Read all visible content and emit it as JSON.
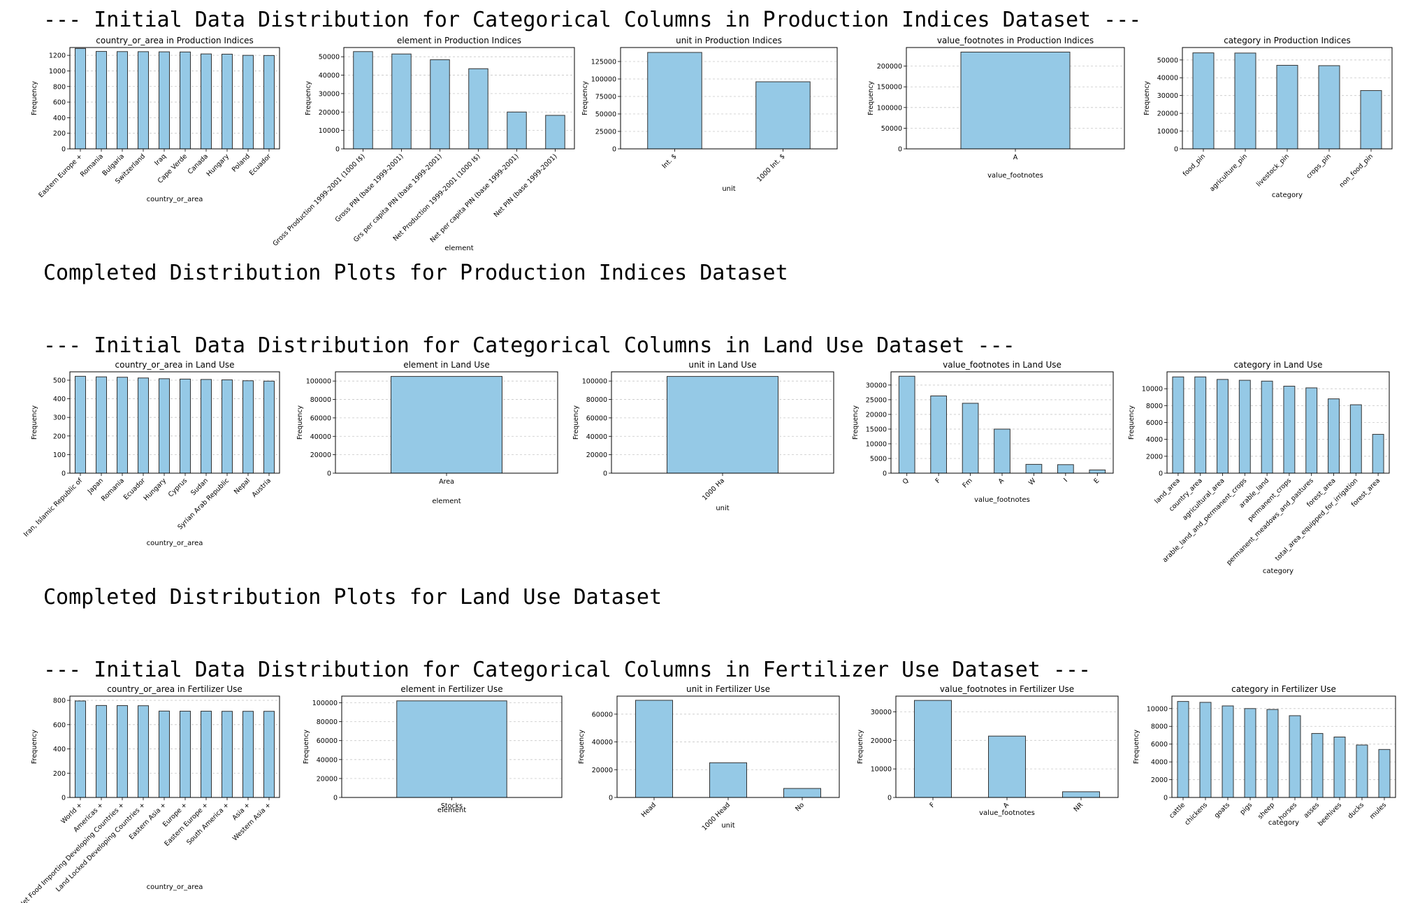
{
  "sections": [
    {
      "heading": "--- Initial Data Distribution for Categorical Columns in Production Indices Dataset ---",
      "completed": "Completed Distribution Plots for Production Indices Dataset",
      "charts": [
        {
          "title": "country_or_area in Production Indices",
          "xlabel": "country_or_area",
          "ylabel": "Frequency",
          "ylim": [
            0,
            1300
          ],
          "yticks": [
            0,
            200,
            400,
            600,
            800,
            1000,
            1200
          ],
          "categories": [
            "Eastern Europe +",
            "Romania",
            "Bulgaria",
            "Switzerland",
            "Iraq",
            "Cape Verde",
            "Canada",
            "Hungary",
            "Poland",
            "Ecuador"
          ],
          "values": [
            1288,
            1250,
            1248,
            1247,
            1245,
            1243,
            1218,
            1215,
            1200,
            1198
          ]
        },
        {
          "title": "element in Production Indices",
          "xlabel": "element",
          "ylabel": "Frequency",
          "ylim": [
            0,
            55000
          ],
          "yticks": [
            0,
            10000,
            20000,
            30000,
            40000,
            50000
          ],
          "categories": [
            "Gross Production 1999-2001 (1000 I$)",
            "Gross PIN (base 1999-2001)",
            "Grs per capita PIN (base 1999-2001)",
            "Net Production 1999-2001 (1000 I$)",
            "Net per capita PIN (base 1999-2001)",
            "Net PIN (base 1999-2001)"
          ],
          "values": [
            52800,
            51500,
            48400,
            43500,
            20000,
            18200
          ]
        },
        {
          "title": "unit in Production Indices",
          "xlabel": "unit",
          "ylabel": "Frequency",
          "ylim": [
            0,
            145000
          ],
          "yticks": [
            0,
            25000,
            50000,
            75000,
            100000,
            125000
          ],
          "categories": [
            "Int. $",
            "1000 Int. $"
          ],
          "values": [
            138000,
            96000
          ]
        },
        {
          "title": "value_footnotes in Production Indices",
          "xlabel": "value_footnotes",
          "ylabel": "Frequency",
          "ylim": [
            0,
            245000
          ],
          "yticks": [
            0,
            50000,
            100000,
            150000,
            200000
          ],
          "categories": [
            "A"
          ],
          "values": [
            234000
          ]
        },
        {
          "title": "category in Production Indices",
          "xlabel": "category",
          "ylabel": "Frequency",
          "ylim": [
            0,
            57000
          ],
          "yticks": [
            0,
            10000,
            20000,
            30000,
            40000,
            50000
          ],
          "categories": [
            "food_pin",
            "agriculture_pin",
            "livestock_pin",
            "crops_pin",
            "non_food_pin"
          ],
          "values": [
            54000,
            53900,
            47000,
            46800,
            32800
          ]
        }
      ]
    },
    {
      "heading": "--- Initial Data Distribution for Categorical Columns in Land Use Dataset ---",
      "completed": "Completed Distribution Plots for Land Use Dataset",
      "charts": [
        {
          "title": "country_or_area in Land Use",
          "xlabel": "country_or_area",
          "ylabel": "Frequency",
          "ylim": [
            0,
            545
          ],
          "yticks": [
            0,
            100,
            200,
            300,
            400,
            500
          ],
          "categories": [
            "Iran, Islamic Republic of",
            "Japan",
            "Romania",
            "Ecuador",
            "Hungary",
            "Cyprus",
            "Sudan",
            "Syrian Arab Republic",
            "Nepal",
            "Austria"
          ],
          "values": [
            521,
            518,
            516,
            512,
            508,
            506,
            504,
            502,
            497,
            495
          ]
        },
        {
          "title": "element in Land Use",
          "xlabel": "element",
          "ylabel": "Frequency",
          "ylim": [
            0,
            110000
          ],
          "yticks": [
            0,
            20000,
            40000,
            60000,
            80000,
            100000
          ],
          "categories": [
            "Area"
          ],
          "values": [
            105000
          ]
        },
        {
          "title": "unit in Land Use",
          "xlabel": "unit",
          "ylabel": "Frequency",
          "ylim": [
            0,
            110000
          ],
          "yticks": [
            0,
            20000,
            40000,
            60000,
            80000,
            100000
          ],
          "categories": [
            "1000 Ha"
          ],
          "values": [
            105000
          ]
        },
        {
          "title": "value_footnotes in Land Use",
          "xlabel": "value_footnotes",
          "ylabel": "Frequency",
          "ylim": [
            0,
            34500
          ],
          "yticks": [
            0,
            5000,
            10000,
            15000,
            20000,
            25000,
            30000
          ],
          "categories": [
            "Q",
            "F",
            "Fm",
            "A",
            "W",
            "I",
            "E"
          ],
          "values": [
            33000,
            26300,
            23800,
            15000,
            3000,
            2900,
            1100
          ]
        },
        {
          "title": "category in Land Use",
          "xlabel": "category",
          "ylabel": "Frequency",
          "ylim": [
            0,
            12000
          ],
          "yticks": [
            0,
            2000,
            4000,
            6000,
            8000,
            10000
          ],
          "categories": [
            "land_area",
            "country_area",
            "agricultural_area",
            "arable_land_and_permanent_crops",
            "arable_land",
            "permanent_crops",
            "permanent_meadows_and_pastures",
            "forest_area",
            "total_area_equipped_for_irrigation",
            "forest_area"
          ],
          "values": [
            11400,
            11400,
            11100,
            11000,
            10900,
            10300,
            10100,
            8800,
            8100,
            4600
          ]
        }
      ]
    },
    {
      "heading": "--- Initial Data Distribution for Categorical Columns in Fertilizer Use Dataset ---",
      "completed": "",
      "charts": [
        {
          "title": "country_or_area in Fertilizer Use",
          "xlabel": "country_or_area",
          "ylabel": "Frequency",
          "ylim": [
            0,
            835
          ],
          "yticks": [
            0,
            200,
            400,
            600,
            800
          ],
          "categories": [
            "World +",
            "Americas +",
            "Net Food Importing Developing Countries +",
            "Land Locked Developing Countries +",
            "Eastern Asia +",
            "Europe +",
            "Eastern Europe +",
            "South America +",
            "Asia +",
            "Western Asia +"
          ],
          "values": [
            795,
            758,
            757,
            756,
            712,
            711,
            711,
            710,
            710,
            710
          ]
        },
        {
          "title": "element in Fertilizer Use",
          "xlabel": "element",
          "ylabel": "Frequency",
          "ylim": [
            0,
            107000
          ],
          "yticks": [
            0,
            20000,
            40000,
            60000,
            80000,
            100000
          ],
          "categories": [
            "Stocks"
          ],
          "values": [
            102000
          ]
        },
        {
          "title": "unit in Fertilizer Use",
          "xlabel": "unit",
          "ylabel": "Frequency",
          "ylim": [
            0,
            73000
          ],
          "yticks": [
            0,
            20000,
            40000,
            60000
          ],
          "categories": [
            "Head",
            "1000 Head",
            "No"
          ],
          "values": [
            70000,
            25000,
            6500
          ]
        },
        {
          "title": "value_footnotes in Fertilizer Use",
          "xlabel": "value_footnotes",
          "ylabel": "Frequency",
          "ylim": [
            0,
            35500
          ],
          "yticks": [
            0,
            10000,
            20000,
            30000
          ],
          "categories": [
            "F",
            "A",
            "NR"
          ],
          "values": [
            34000,
            21500,
            2000
          ]
        },
        {
          "title": "category in Fertilizer Use",
          "xlabel": "category",
          "ylabel": "Frequency",
          "ylim": [
            0,
            11400
          ],
          "yticks": [
            0,
            2000,
            4000,
            6000,
            8000,
            10000
          ],
          "categories": [
            "cattle",
            "chickens",
            "goats",
            "pigs",
            "sheep",
            "horses",
            "asses",
            "beehives",
            "ducks",
            "mules"
          ],
          "values": [
            10800,
            10700,
            10300,
            10000,
            9900,
            9200,
            7200,
            6800,
            5900,
            5400
          ]
        }
      ]
    }
  ],
  "colors": {
    "bar_fill": "#95c9e6",
    "bar_edge": "#333333",
    "grid": "#c8c8c8",
    "axis": "#000000"
  }
}
